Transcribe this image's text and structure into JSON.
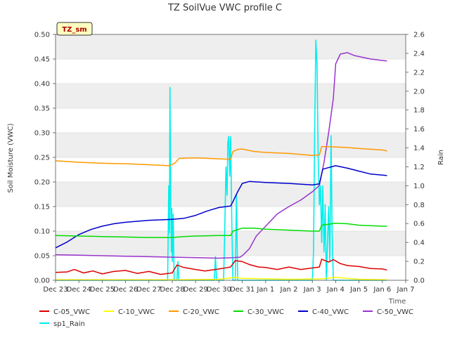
{
  "chart_data": {
    "type": "line",
    "title": "TZ SoilVue VWC profile C",
    "xlabel": "Time",
    "ylabel": "Soil Moisture (VWC)",
    "y2label": "Rain",
    "site_label": "TZ_sm",
    "xlim": [
      0,
      15
    ],
    "ylim": [
      0,
      0.5
    ],
    "y2lim": [
      0,
      2.6
    ],
    "x_ticks": [
      {
        "x": 0,
        "label": "Dec 23"
      },
      {
        "x": 1,
        "label": "Dec 24"
      },
      {
        "x": 2,
        "label": "Dec 25"
      },
      {
        "x": 3,
        "label": "Dec 26"
      },
      {
        "x": 4,
        "label": "Dec 27"
      },
      {
        "x": 5,
        "label": "Dec 28"
      },
      {
        "x": 6,
        "label": "Dec 29"
      },
      {
        "x": 7,
        "label": "Dec 30"
      },
      {
        "x": 8,
        "label": "Dec 31"
      },
      {
        "x": 9,
        "label": "Jan 1"
      },
      {
        "x": 10,
        "label": "Jan 2"
      },
      {
        "x": 11,
        "label": "Jan 3"
      },
      {
        "x": 12,
        "label": "Jan 4"
      },
      {
        "x": 13,
        "label": "Jan 5"
      },
      {
        "x": 14,
        "label": "Jan 6"
      },
      {
        "x": 15,
        "label": "Jan 7"
      }
    ],
    "y_ticks": [
      "0.00",
      "0.05",
      "0.10",
      "0.15",
      "0.20",
      "0.25",
      "0.30",
      "0.35",
      "0.40",
      "0.45",
      "0.50"
    ],
    "y2_ticks": [
      "0.0",
      "0.2",
      "0.4",
      "0.6",
      "0.8",
      "1.0",
      "1.2",
      "1.4",
      "1.6",
      "1.8",
      "2.0",
      "2.2",
      "2.4",
      "2.6"
    ],
    "grid": "horizontal-bands",
    "legend_position": "bottom",
    "series": [
      {
        "name": "C-05_VWC",
        "color": "#dd0000",
        "axis": "left",
        "points": [
          [
            0,
            0.016
          ],
          [
            0.5,
            0.017
          ],
          [
            0.8,
            0.022
          ],
          [
            1.2,
            0.015
          ],
          [
            1.6,
            0.019
          ],
          [
            2,
            0.013
          ],
          [
            2.5,
            0.018
          ],
          [
            3,
            0.02
          ],
          [
            3.5,
            0.014
          ],
          [
            4,
            0.018
          ],
          [
            4.5,
            0.012
          ],
          [
            5,
            0.015
          ],
          [
            5.2,
            0.031
          ],
          [
            5.5,
            0.026
          ],
          [
            6,
            0.022
          ],
          [
            6.4,
            0.019
          ],
          [
            7,
            0.023
          ],
          [
            7.5,
            0.027
          ],
          [
            7.7,
            0.04
          ],
          [
            8,
            0.038
          ],
          [
            8.3,
            0.032
          ],
          [
            8.7,
            0.027
          ],
          [
            9,
            0.026
          ],
          [
            9.5,
            0.022
          ],
          [
            10,
            0.027
          ],
          [
            10.5,
            0.022
          ],
          [
            11,
            0.025
          ],
          [
            11.3,
            0.027
          ],
          [
            11.4,
            0.043
          ],
          [
            11.7,
            0.037
          ],
          [
            11.9,
            0.042
          ],
          [
            12.2,
            0.034
          ],
          [
            12.5,
            0.03
          ],
          [
            13,
            0.028
          ],
          [
            13.5,
            0.024
          ],
          [
            14,
            0.023
          ],
          [
            14.2,
            0.021
          ]
        ]
      },
      {
        "name": "C-10_VWC",
        "color": "#ffff00",
        "axis": "left",
        "points": [
          [
            0,
            0.001
          ],
          [
            5,
            0.001
          ],
          [
            7,
            0.002
          ],
          [
            7.7,
            0.006
          ],
          [
            8,
            0.004
          ],
          [
            9,
            0.003
          ],
          [
            10,
            0.002
          ],
          [
            11.4,
            0.003
          ],
          [
            12,
            0.006
          ],
          [
            12.5,
            0.004
          ],
          [
            13,
            0.002
          ],
          [
            14.2,
            0.001
          ]
        ]
      },
      {
        "name": "C-20_VWC",
        "color": "#ff9900",
        "axis": "left",
        "points": [
          [
            0,
            0.243
          ],
          [
            1,
            0.24
          ],
          [
            2,
            0.238
          ],
          [
            3,
            0.237
          ],
          [
            4,
            0.235
          ],
          [
            4.9,
            0.233
          ],
          [
            5.1,
            0.238
          ],
          [
            5.3,
            0.248
          ],
          [
            6,
            0.249
          ],
          [
            7,
            0.247
          ],
          [
            7.5,
            0.246
          ],
          [
            7.6,
            0.262
          ],
          [
            7.8,
            0.266
          ],
          [
            8,
            0.267
          ],
          [
            8.5,
            0.262
          ],
          [
            9,
            0.26
          ],
          [
            10,
            0.258
          ],
          [
            11,
            0.254
          ],
          [
            11.3,
            0.255
          ],
          [
            11.4,
            0.272
          ],
          [
            12,
            0.271
          ],
          [
            12.5,
            0.27
          ],
          [
            13,
            0.268
          ],
          [
            14,
            0.265
          ],
          [
            14.2,
            0.263
          ]
        ]
      },
      {
        "name": "C-30_VWC",
        "color": "#00dd00",
        "axis": "left",
        "points": [
          [
            0,
            0.091
          ],
          [
            1,
            0.09
          ],
          [
            2,
            0.089
          ],
          [
            3,
            0.088
          ],
          [
            4,
            0.087
          ],
          [
            5,
            0.087
          ],
          [
            5.5,
            0.089
          ],
          [
            6,
            0.09
          ],
          [
            7,
            0.091
          ],
          [
            7.5,
            0.091
          ],
          [
            7.6,
            0.1
          ],
          [
            8,
            0.106
          ],
          [
            8.5,
            0.106
          ],
          [
            9,
            0.104
          ],
          [
            10,
            0.102
          ],
          [
            11,
            0.1
          ],
          [
            11.3,
            0.1
          ],
          [
            11.4,
            0.112
          ],
          [
            12,
            0.116
          ],
          [
            12.5,
            0.115
          ],
          [
            13,
            0.112
          ],
          [
            14,
            0.11
          ],
          [
            14.2,
            0.11
          ]
        ]
      },
      {
        "name": "C-40_VWC",
        "color": "#0000cc",
        "axis": "left",
        "points": [
          [
            0,
            0.066
          ],
          [
            0.5,
            0.078
          ],
          [
            1,
            0.093
          ],
          [
            1.5,
            0.103
          ],
          [
            2,
            0.11
          ],
          [
            2.5,
            0.115
          ],
          [
            3,
            0.118
          ],
          [
            3.5,
            0.12
          ],
          [
            4,
            0.122
          ],
          [
            5,
            0.124
          ],
          [
            5.5,
            0.126
          ],
          [
            6,
            0.132
          ],
          [
            6.5,
            0.141
          ],
          [
            7,
            0.148
          ],
          [
            7.5,
            0.151
          ],
          [
            7.6,
            0.16
          ],
          [
            7.8,
            0.18
          ],
          [
            8,
            0.197
          ],
          [
            8.3,
            0.201
          ],
          [
            9,
            0.199
          ],
          [
            10,
            0.197
          ],
          [
            11,
            0.194
          ],
          [
            11.3,
            0.196
          ],
          [
            11.45,
            0.226
          ],
          [
            12,
            0.233
          ],
          [
            12.5,
            0.228
          ],
          [
            13,
            0.222
          ],
          [
            13.5,
            0.216
          ],
          [
            14,
            0.214
          ],
          [
            14.2,
            0.213
          ]
        ]
      },
      {
        "name": "C-50_VWC",
        "color": "#9933cc",
        "axis": "left",
        "points": [
          [
            0,
            0.052
          ],
          [
            1,
            0.051
          ],
          [
            2,
            0.05
          ],
          [
            3,
            0.049
          ],
          [
            4,
            0.048
          ],
          [
            5,
            0.047
          ],
          [
            6,
            0.046
          ],
          [
            7,
            0.045
          ],
          [
            7.6,
            0.046
          ],
          [
            7.9,
            0.047
          ],
          [
            8,
            0.05
          ],
          [
            8.3,
            0.064
          ],
          [
            8.6,
            0.09
          ],
          [
            9,
            0.11
          ],
          [
            9.5,
            0.135
          ],
          [
            10,
            0.15
          ],
          [
            10.5,
            0.163
          ],
          [
            11,
            0.18
          ],
          [
            11.3,
            0.193
          ],
          [
            11.5,
            0.24
          ],
          [
            11.7,
            0.3
          ],
          [
            11.9,
            0.37
          ],
          [
            12.0,
            0.44
          ],
          [
            12.2,
            0.46
          ],
          [
            12.5,
            0.463
          ],
          [
            12.8,
            0.457
          ],
          [
            13,
            0.455
          ],
          [
            13.5,
            0.45
          ],
          [
            14,
            0.447
          ],
          [
            14.2,
            0.446
          ]
        ]
      },
      {
        "name": "sp1_Rain",
        "color": "#00eeee",
        "axis": "right",
        "points": [
          [
            0,
            0
          ],
          [
            4.8,
            0
          ],
          [
            4.85,
            1.0
          ],
          [
            4.88,
            0.5
          ],
          [
            4.9,
            2.04
          ],
          [
            4.93,
            1.0
          ],
          [
            4.96,
            0.3
          ],
          [
            4.98,
            0.76
          ],
          [
            5.0,
            0.2
          ],
          [
            5.04,
            0.7
          ],
          [
            5.08,
            0
          ],
          [
            5.2,
            0
          ],
          [
            5.24,
            0.2
          ],
          [
            5.28,
            0
          ],
          [
            6.8,
            0
          ],
          [
            6.85,
            0.25
          ],
          [
            6.9,
            0
          ],
          [
            7.2,
            0
          ],
          [
            7.25,
            0.55
          ],
          [
            7.3,
            1.2
          ],
          [
            7.35,
            0.9
          ],
          [
            7.38,
            1.45
          ],
          [
            7.42,
            1.52
          ],
          [
            7.46,
            1.1
          ],
          [
            7.5,
            1.52
          ],
          [
            7.55,
            0.6
          ],
          [
            7.6,
            0
          ],
          [
            7.7,
            0
          ],
          [
            7.75,
            0.9
          ],
          [
            7.8,
            0
          ],
          [
            11.0,
            0
          ],
          [
            11.05,
            0.3
          ],
          [
            11.1,
            1.55
          ],
          [
            11.15,
            2.54
          ],
          [
            11.2,
            2.3
          ],
          [
            11.25,
            1.3
          ],
          [
            11.3,
            0.8
          ],
          [
            11.35,
            1.0
          ],
          [
            11.4,
            0.4
          ],
          [
            11.45,
            1.0
          ],
          [
            11.5,
            0.3
          ],
          [
            11.55,
            0.8
          ],
          [
            11.6,
            0
          ],
          [
            11.65,
            0.4
          ],
          [
            11.7,
            0.78
          ],
          [
            11.75,
            0.2
          ],
          [
            11.8,
            1.53
          ],
          [
            11.85,
            0.5
          ],
          [
            11.9,
            0
          ],
          [
            14.2,
            0
          ]
        ]
      }
    ]
  }
}
